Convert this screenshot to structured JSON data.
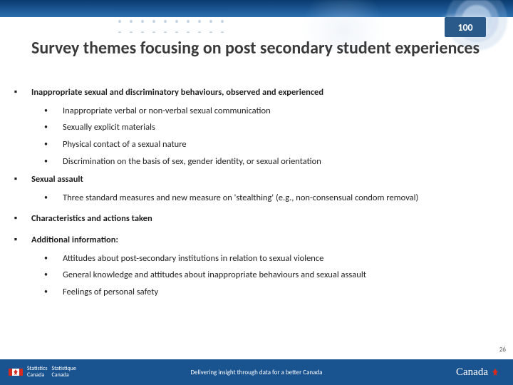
{
  "badge": "100",
  "title": "Survey themes focusing on post secondary student experiences",
  "items": [
    {
      "level": 1,
      "text": "Inappropriate sexual and discriminatory behaviours, observed and experienced",
      "gap": "s"
    },
    {
      "level": 2,
      "text": "Inappropriate verbal or non-verbal sexual communication"
    },
    {
      "level": 2,
      "text": "Sexually explicit materials"
    },
    {
      "level": 2,
      "text": "Physical contact of a sexual nature"
    },
    {
      "level": 2,
      "text": "Discrimination on the basis of sex, gender identity, or sexual orientation",
      "gap": "s"
    },
    {
      "level": 1,
      "text": "Sexual assault",
      "gap": "s"
    },
    {
      "level": 2,
      "text": "Three standard measures and new measure on 'stealthing' (e.g., non-consensual condom removal)",
      "gap": "m"
    },
    {
      "level": 1,
      "text": "Characteristics and actions taken",
      "gap": "m"
    },
    {
      "level": 1,
      "text": "Additional information:",
      "gap": "s"
    },
    {
      "level": 2,
      "text": "Attitudes about post-secondary institutions in relation to sexual violence"
    },
    {
      "level": 2,
      "text": "General knowledge and attitudes about inappropriate behaviours and sexual assault"
    },
    {
      "level": 2,
      "text": "Feelings of personal safety"
    }
  ],
  "page_number": "26",
  "footer": {
    "agency_en": "Statistics",
    "agency_en2": "Canada",
    "agency_fr": "Statistique",
    "agency_fr2": "Canada",
    "tagline": "Delivering insight through data for a better Canada",
    "wordmark": "Canada"
  },
  "bullets": {
    "l1": "▪",
    "l2": "•"
  },
  "colors": {
    "banner_top": "#0a3b6e",
    "banner_bottom": "#2a6fb0",
    "footer_bg": "#1a5490",
    "text": "#222222",
    "title": "#3a3a3a",
    "flag_red": "#d52b1e"
  }
}
